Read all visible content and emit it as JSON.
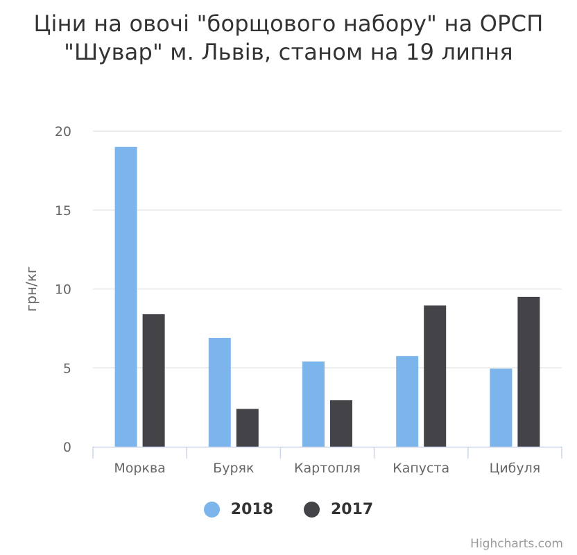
{
  "chart_data": {
    "type": "bar",
    "title": "Ціни на овочі \"борщового набору\" на ОРСП \"Шувар\" м. Львів, станом на 19 липня",
    "xlabel": "",
    "ylabel": "грн/кг",
    "ylim": [
      0,
      20
    ],
    "yticks": [
      "0",
      "5",
      "10",
      "15",
      "20"
    ],
    "categories": [
      "Морква",
      "Буряк",
      "Картопля",
      "Капуста",
      "Цибуля"
    ],
    "series": [
      {
        "name": "2018",
        "color": "#7cb5ec",
        "values": [
          19.0,
          6.9,
          5.4,
          5.75,
          4.95
        ]
      },
      {
        "name": "2017",
        "color": "#434348",
        "values": [
          8.4,
          2.4,
          2.95,
          8.95,
          9.5
        ]
      }
    ],
    "grid": true,
    "legend_position": "bottom-center"
  },
  "credits": "Highcharts.com"
}
